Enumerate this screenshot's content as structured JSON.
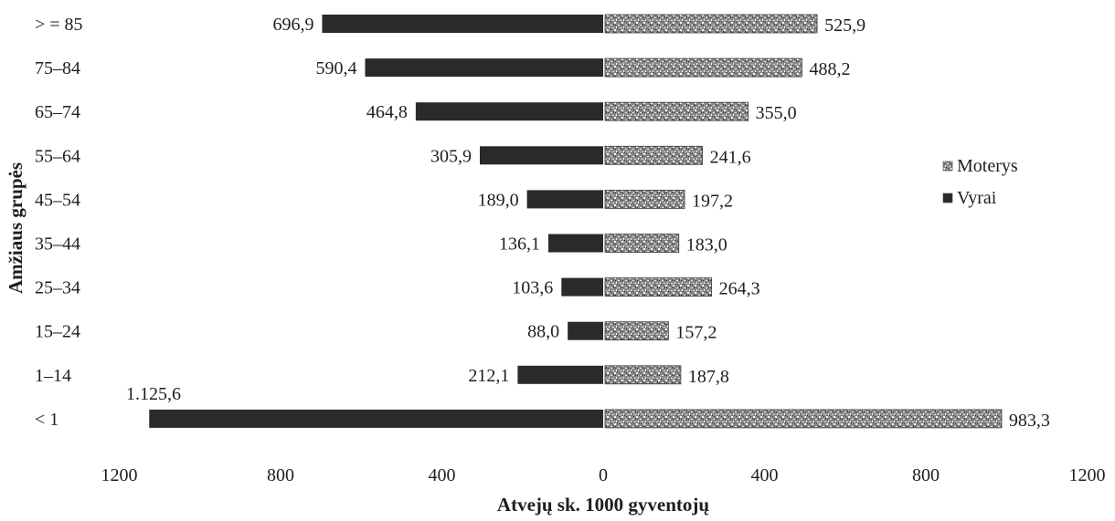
{
  "chart_data": {
    "type": "bar",
    "orientation": "horizontal-butterfly",
    "categories": [
      ">= 85",
      "75–84",
      "65–74",
      "55–64",
      "45–54",
      "35–44",
      "25–34",
      "15–24",
      "1–14",
      "< 1"
    ],
    "category_labels": [
      "> = 85",
      "75–84",
      "65–74",
      "55–64",
      "45–54",
      "35–44",
      "25–34",
      "15–24",
      "1–14",
      "< 1"
    ],
    "series": [
      {
        "name": "Vyrai",
        "side": "left",
        "color": "#2a2a2a",
        "values": [
          696.9,
          590.4,
          464.8,
          305.9,
          189.0,
          136.1,
          103.6,
          88.0,
          212.1,
          1125.6
        ],
        "labels": [
          "696,9",
          "590,4",
          "464,8",
          "305,9",
          "189,0",
          "136,1",
          "103,6",
          "88,0",
          "212,1",
          "1.125,6"
        ]
      },
      {
        "name": "Moterys",
        "side": "right",
        "color": "#7a7a7a",
        "values": [
          525.9,
          488.2,
          355.0,
          241.6,
          197.2,
          183.0,
          264.3,
          157.2,
          187.8,
          983.3
        ],
        "labels": [
          "525,9",
          "488,2",
          "355,0",
          "241,6",
          "197,2",
          "183,0",
          "264,3",
          "157,2",
          "187,8",
          "983,3"
        ]
      }
    ],
    "xlabel": "Atvejų sk. 1000 gyventojų",
    "ylabel": "Amžiaus grupės",
    "xlim": [
      -1200,
      1200
    ],
    "x_ticks": [
      -1200,
      -800,
      -400,
      0,
      400,
      800,
      1200
    ],
    "x_tick_labels": [
      "1200",
      "800",
      "400",
      "0",
      "400",
      "800",
      "1200"
    ],
    "legend": {
      "position": "right",
      "entries": [
        "Moterys",
        "Vyrai"
      ]
    },
    "grid": false
  }
}
